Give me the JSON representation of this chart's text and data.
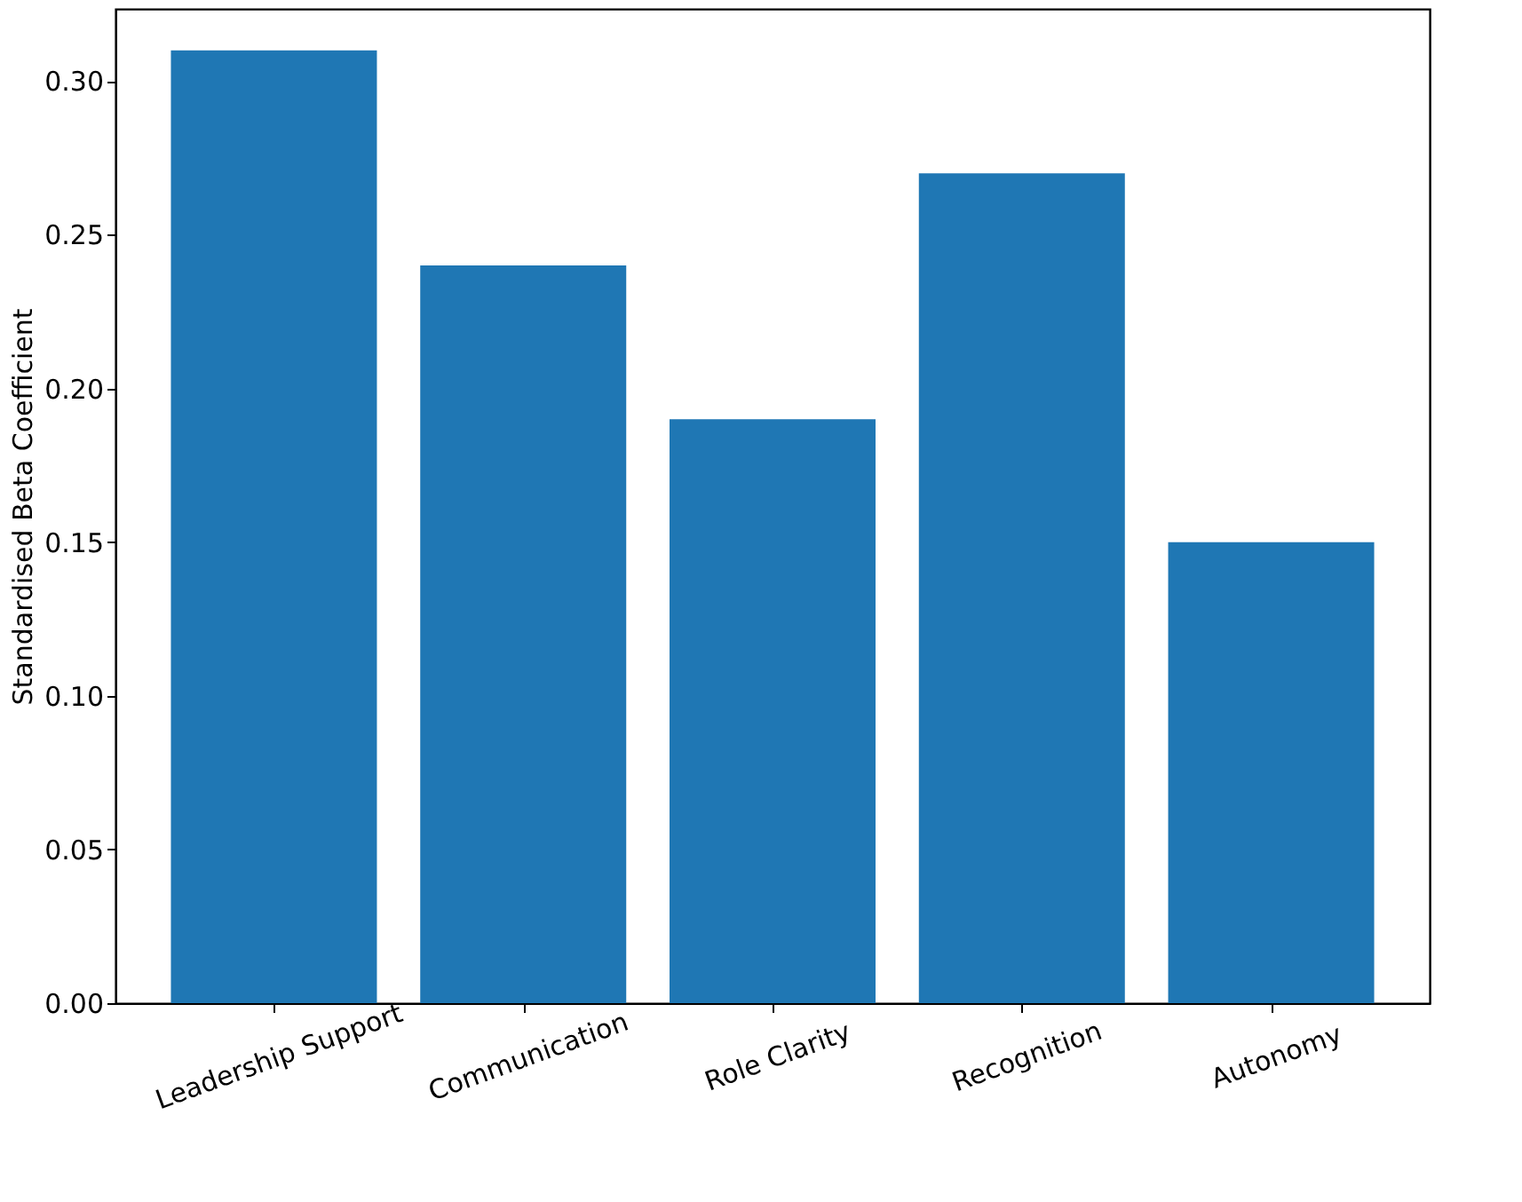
{
  "chart_data": {
    "type": "bar",
    "ylabel": "Standardised Beta Coefficient",
    "categories": [
      "Leadership Support",
      "Communication",
      "Role Clarity",
      "Recognition",
      "Autonomy"
    ],
    "values": [
      0.31,
      0.24,
      0.19,
      0.27,
      0.15
    ],
    "color": "#1f77b4",
    "ylim": [
      0,
      0.3235
    ],
    "yticks": [
      {
        "value": 0,
        "label": "0.00"
      },
      {
        "value": 0.05,
        "label": "0.05"
      },
      {
        "value": 0.1,
        "label": "0.10"
      },
      {
        "value": 0.15,
        "label": "0.15"
      },
      {
        "value": 0.2,
        "label": "0.20"
      },
      {
        "value": 0.25,
        "label": "0.25"
      },
      {
        "value": 0.3,
        "label": "0.30"
      }
    ],
    "grid": false
  }
}
